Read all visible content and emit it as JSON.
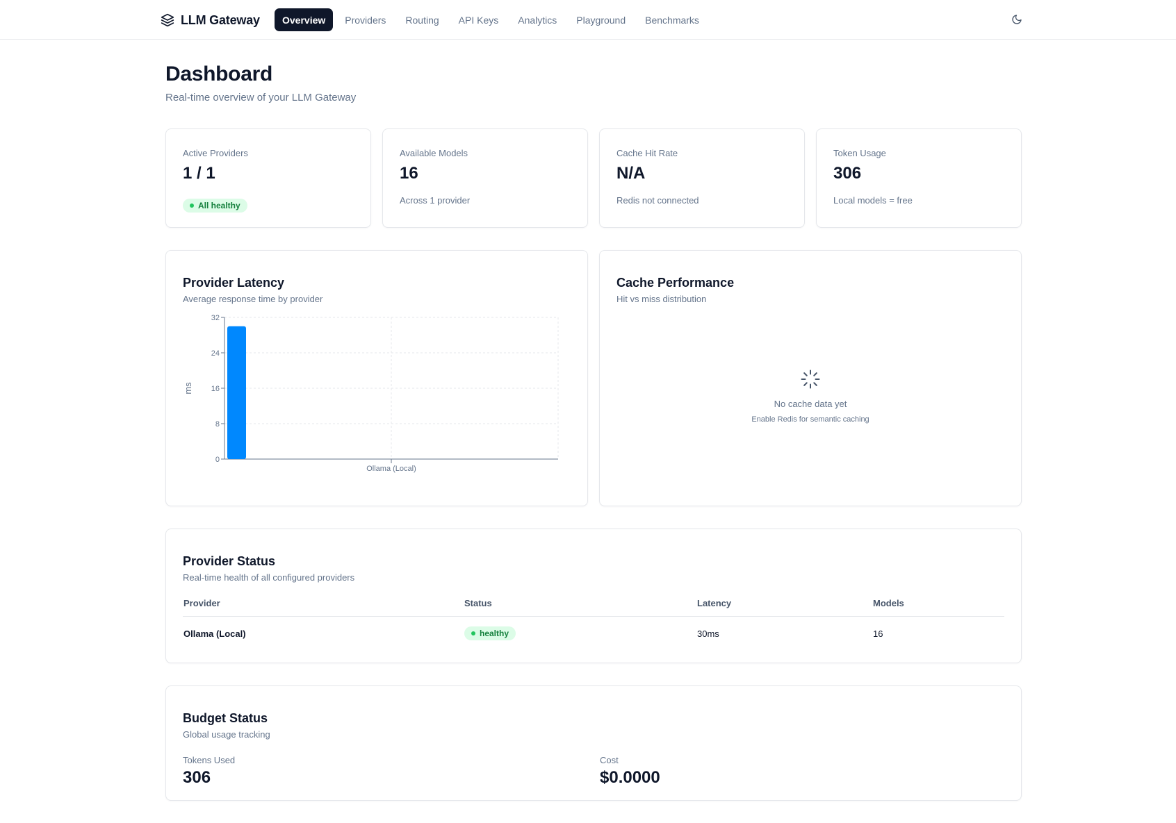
{
  "app": {
    "name": "LLM Gateway",
    "logo_icon": "layers-icon"
  },
  "nav": {
    "items": [
      {
        "label": "Overview",
        "active": true
      },
      {
        "label": "Providers",
        "active": false
      },
      {
        "label": "Routing",
        "active": false
      },
      {
        "label": "API Keys",
        "active": false
      },
      {
        "label": "Analytics",
        "active": false
      },
      {
        "label": "Playground",
        "active": false
      },
      {
        "label": "Benchmarks",
        "active": false
      }
    ],
    "theme_toggle_icon": "moon-icon"
  },
  "page": {
    "title": "Dashboard",
    "subtitle": "Real-time overview of your LLM Gateway"
  },
  "stats": {
    "active_providers": {
      "label": "Active Providers",
      "value": "1 / 1",
      "badge": "All healthy"
    },
    "available_models": {
      "label": "Available Models",
      "value": "16",
      "note": "Across 1 provider"
    },
    "cache_hit_rate": {
      "label": "Cache Hit Rate",
      "value": "N/A",
      "note": "Redis not connected"
    },
    "token_usage": {
      "label": "Token Usage",
      "value": "306",
      "note": "Local models = free"
    }
  },
  "latency": {
    "title": "Provider Latency",
    "subtitle": "Average response time by provider"
  },
  "chart_data": {
    "type": "bar",
    "categories": [
      "Ollama (Local)"
    ],
    "values": [
      30
    ],
    "ylabel": "ms",
    "ylim": [
      0,
      32
    ],
    "yticks": [
      0,
      8,
      16,
      24,
      32
    ],
    "grid": true,
    "color": "#0088fe"
  },
  "cache": {
    "title": "Cache Performance",
    "subtitle": "Hit vs miss distribution",
    "empty_icon": "loader-icon",
    "empty_title": "No cache data yet",
    "empty_hint": "Enable Redis for semantic caching"
  },
  "provider_status": {
    "title": "Provider Status",
    "subtitle": "Real-time health of all configured providers",
    "columns": [
      "Provider",
      "Status",
      "Latency",
      "Models"
    ],
    "rows": [
      {
        "provider": "Ollama (Local)",
        "status": "healthy",
        "latency": "30ms",
        "models": "16"
      }
    ]
  },
  "budget": {
    "title": "Budget Status",
    "subtitle": "Global usage tracking",
    "tokens_label": "Tokens Used",
    "tokens_value": "306",
    "cost_label": "Cost",
    "cost_value": "$0.0000"
  },
  "colors": {
    "primary": "#0f172a",
    "accent": "#0088fe",
    "success": "#22c55e",
    "muted": "#64748b"
  }
}
